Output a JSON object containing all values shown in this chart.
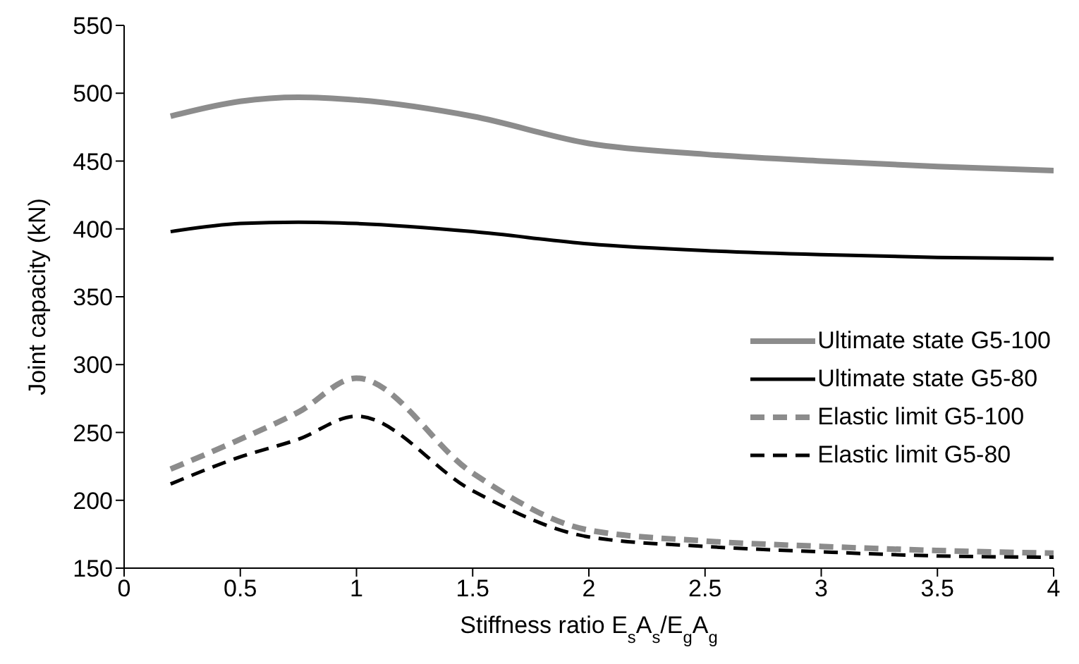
{
  "chart_data": {
    "type": "line",
    "xlabel": "Stiffness ratio E$_{s}$A$_{s}$/E$_{g}$A$_{g}$",
    "ylabel": "Joint capacity (kN)",
    "x": [
      0.2,
      0.5,
      0.75,
      1,
      1.5,
      2,
      2.5,
      3,
      3.5,
      4
    ],
    "xlim": [
      0,
      4
    ],
    "xticks": [
      0,
      0.5,
      1,
      1.5,
      2,
      2.5,
      3,
      3.5,
      4
    ],
    "ylim": [
      150,
      550
    ],
    "yticks": [
      150,
      200,
      250,
      300,
      350,
      400,
      450,
      500,
      550
    ],
    "grid": false,
    "legend": "right",
    "marker": "none",
    "series": [
      {
        "name": "Ultimate state G5-100",
        "color": "#8c8c8c",
        "line_style": "solid",
        "values": [
          483,
          494,
          497,
          495,
          483,
          463,
          455,
          450,
          446,
          443
        ]
      },
      {
        "name": "Ultimate state G5-80",
        "color": "#000000",
        "line_style": "solid",
        "values": [
          398,
          404,
          405,
          404,
          398,
          389,
          384,
          381,
          379,
          378
        ]
      },
      {
        "name": "Elastic limit G5-100",
        "color": "#8c8c8c",
        "line_style": "dashed",
        "values": [
          223,
          245,
          265,
          290,
          220,
          178,
          170,
          166,
          163,
          161
        ]
      },
      {
        "name": "Elastic limit G5-80",
        "color": "#000000",
        "line_style": "dashed",
        "values": [
          212,
          232,
          245,
          262,
          207,
          173,
          166,
          162,
          159,
          158
        ]
      }
    ]
  }
}
